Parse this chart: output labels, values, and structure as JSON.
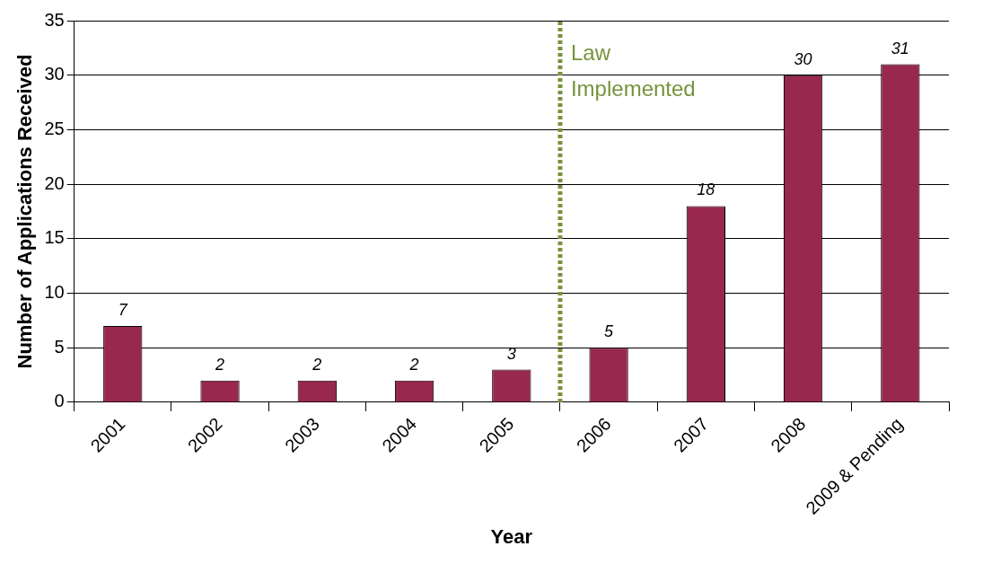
{
  "chart_data": {
    "type": "bar",
    "xlabel": "Year",
    "ylabel": "Number of Applications Received",
    "categories": [
      "2001",
      "2002",
      "2003",
      "2004",
      "2005",
      "2006",
      "2007",
      "2008",
      "2009 & Pending"
    ],
    "values": [
      7,
      2,
      2,
      2,
      3,
      5,
      18,
      30,
      31
    ],
    "color": "#99284f",
    "ylim": [
      0,
      35
    ],
    "yticks": [
      0,
      5,
      10,
      15,
      20,
      25,
      30,
      35
    ],
    "grid": "y",
    "data_labels": true,
    "ref_lines": [
      {
        "axis": "x",
        "value": "2006",
        "label": "Law Implemented",
        "color": "#77933c",
        "line_style": "dotted"
      }
    ]
  }
}
